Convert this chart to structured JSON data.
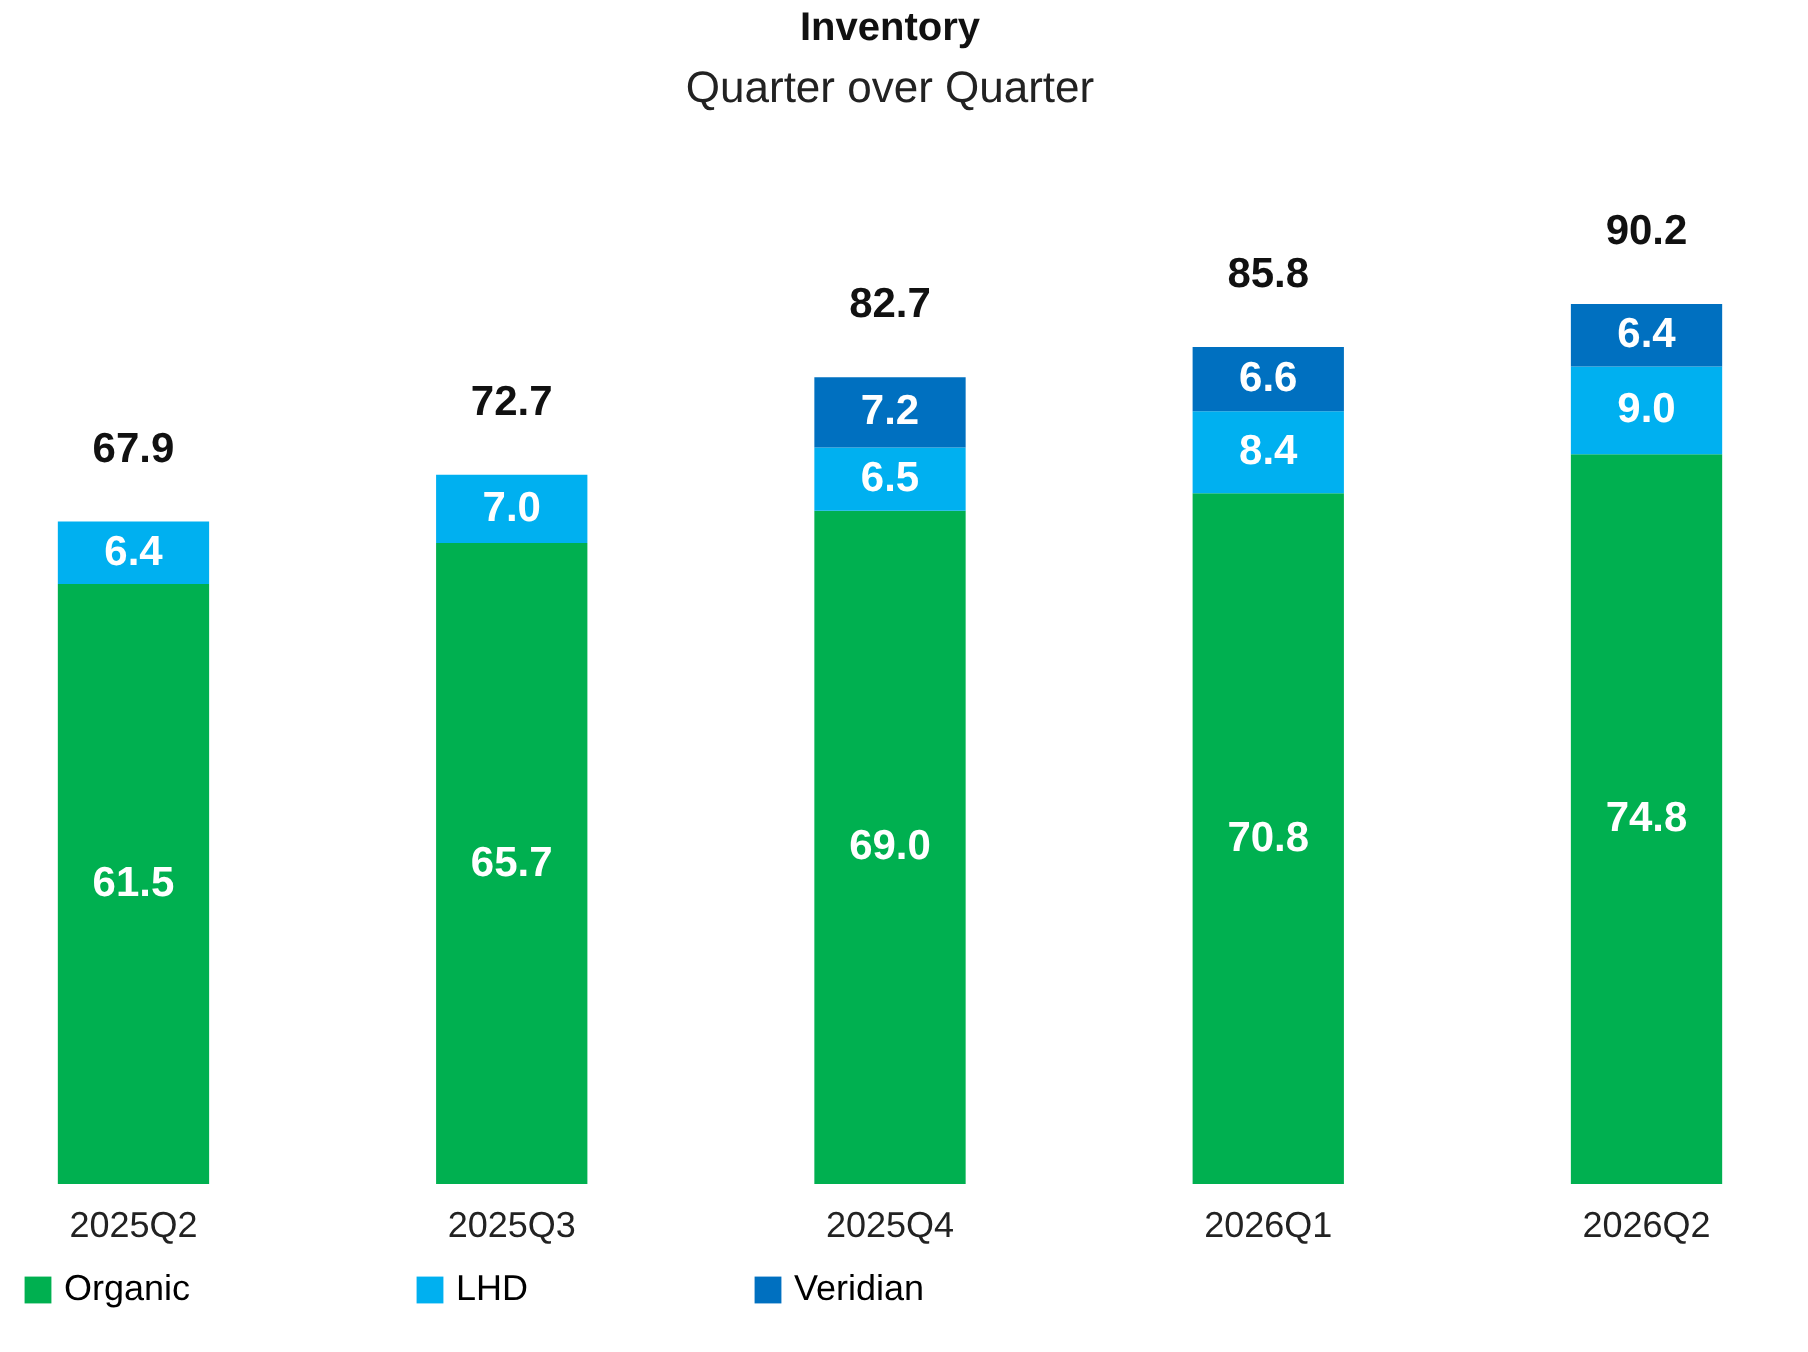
{
  "chart_data": {
    "type": "bar",
    "title": "Inventory",
    "subtitle": "Quarter over Quarter",
    "categories": [
      "2025Q2",
      "2025Q3",
      "2025Q4",
      "2026Q1",
      "2026Q2"
    ],
    "stacked": true,
    "legend": "bottom",
    "series": [
      {
        "name": "Organic",
        "color": "#00b050",
        "values": [
          61.5,
          65.7,
          69.0,
          70.8,
          74.8
        ],
        "value_labels": [
          "61.5",
          "65.7",
          "69.0",
          "70.8",
          "74.8"
        ]
      },
      {
        "name": "LHD",
        "color": "#00b0f0",
        "values": [
          6.4,
          7.0,
          6.5,
          8.4,
          9.0
        ],
        "value_labels": [
          "6.4",
          "7.0",
          "6.5",
          "8.4",
          "9.0"
        ]
      },
      {
        "name": "Veridian",
        "color": "#0070c0",
        "values": [
          null,
          null,
          7.2,
          6.6,
          6.4
        ],
        "value_labels": [
          null,
          null,
          "7.2",
          "6.6",
          "6.4"
        ]
      }
    ],
    "totals": [
      "67.9",
      "72.7",
      "82.7",
      "85.8",
      "90.2"
    ]
  }
}
